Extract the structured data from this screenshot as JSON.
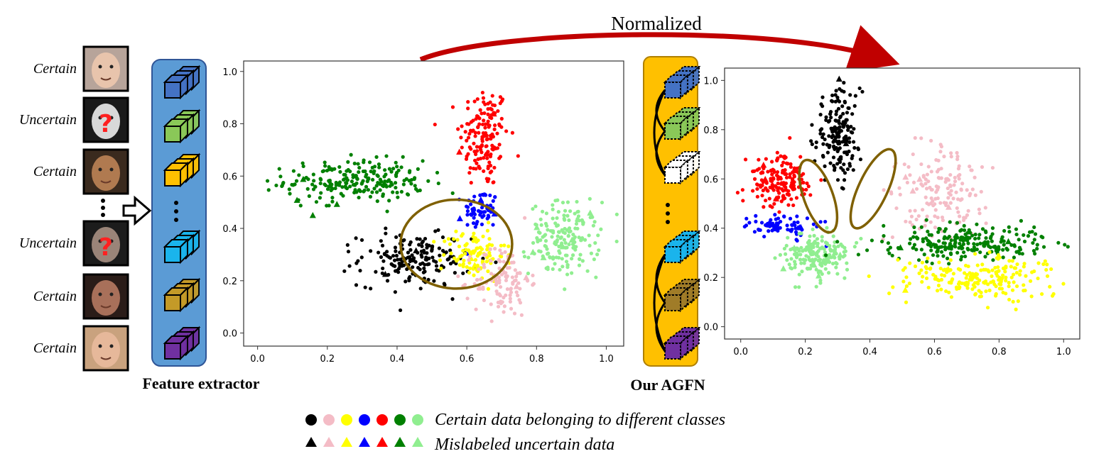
{
  "title": "Normalized",
  "inputs": {
    "faces": [
      {
        "label": "Certain",
        "skin": "#e8c4ac",
        "bg": "#b7a49a",
        "uncertain": false
      },
      {
        "label": "Uncertain",
        "skin": "#d8d8d8",
        "bg": "#1a1a1a",
        "uncertain": true
      },
      {
        "label": "Certain",
        "skin": "#b07a50",
        "bg": "#3a2a1e",
        "uncertain": false
      },
      {
        "label": "Uncertain",
        "skin": "#9a8478",
        "bg": "#1c1c1c",
        "uncertain": true
      },
      {
        "label": "Certain",
        "skin": "#a8705a",
        "bg": "#2a1c18",
        "uncertain": false
      },
      {
        "label": "Certain",
        "skin": "#e6b89a",
        "bg": "#c9a27e",
        "uncertain": false
      }
    ]
  },
  "feature_extractor": {
    "label": "Feature extractor",
    "block_colors": [
      "#4472c4",
      "#8ac858",
      "#ffc000",
      "#1ab4ec",
      "#c49a28",
      "#7030a0"
    ],
    "panel_color": "#5b9bd5"
  },
  "agfn": {
    "label": "Our AGFN",
    "block_colors": [
      "#4472c4",
      "#8ac858",
      "#ffffff",
      "#1ab4ec",
      "#a07c28",
      "#7030a0"
    ],
    "panel_color": "#ffc000"
  },
  "legend": {
    "certain_text": "Certain data belonging to different classes",
    "uncertain_text": "Mislabeled uncertain data",
    "colors": [
      "#000000",
      "#f4bcc6",
      "#ffff00",
      "#0000ff",
      "#ff0000",
      "#008000",
      "#90ee90"
    ]
  },
  "chart_data": [
    {
      "type": "scatter",
      "name": "before-normalization",
      "title": "",
      "xlabel": "",
      "ylabel": "",
      "xlim": [
        -0.04,
        1.05
      ],
      "ylim": [
        -0.05,
        1.04
      ],
      "xticks": [
        0.0,
        0.2,
        0.4,
        0.6,
        0.8,
        1.0
      ],
      "yticks": [
        0.0,
        0.2,
        0.4,
        0.6,
        0.8,
        1.0
      ],
      "clusters": [
        {
          "class": "red",
          "color": "#ff0000",
          "cx": 0.65,
          "cy": 0.75,
          "sx": 0.035,
          "sy": 0.1,
          "n": 150,
          "triangles": 2
        },
        {
          "class": "blue",
          "color": "#0000ff",
          "cx": 0.64,
          "cy": 0.47,
          "sx": 0.025,
          "sy": 0.04,
          "n": 60,
          "triangles": 3
        },
        {
          "class": "green",
          "color": "#008000",
          "cx": 0.28,
          "cy": 0.58,
          "sx": 0.1,
          "sy": 0.04,
          "n": 220,
          "triangles": 4
        },
        {
          "class": "lightgreen",
          "color": "#90ee90",
          "cx": 0.88,
          "cy": 0.36,
          "sx": 0.05,
          "sy": 0.07,
          "n": 170,
          "triangles": 6
        },
        {
          "class": "black",
          "color": "#000000",
          "cx": 0.45,
          "cy": 0.28,
          "sx": 0.08,
          "sy": 0.05,
          "n": 170,
          "triangles": 2
        },
        {
          "class": "yellow",
          "color": "#ffff00",
          "cx": 0.62,
          "cy": 0.3,
          "sx": 0.045,
          "sy": 0.05,
          "n": 100,
          "triangles": 3
        },
        {
          "class": "pink",
          "color": "#f4bcc6",
          "cx": 0.7,
          "cy": 0.2,
          "sx": 0.04,
          "sy": 0.07,
          "n": 110,
          "triangles": 2
        }
      ],
      "annotation": {
        "shape": "ellipse",
        "cx": 0.57,
        "cy": 0.34,
        "rx": 0.16,
        "ry": 0.17,
        "color": "#7f6000"
      }
    },
    {
      "type": "scatter",
      "name": "after-normalization",
      "title": "",
      "xlabel": "",
      "ylabel": "",
      "xlim": [
        -0.05,
        1.05
      ],
      "ylim": [
        -0.05,
        1.05
      ],
      "xticks": [
        0.0,
        0.2,
        0.4,
        0.6,
        0.8,
        1.0
      ],
      "yticks": [
        0.0,
        0.2,
        0.4,
        0.6,
        0.8,
        1.0
      ],
      "clusters": [
        {
          "class": "black",
          "color": "#000000",
          "cx": 0.3,
          "cy": 0.78,
          "sx": 0.035,
          "sy": 0.09,
          "n": 170,
          "triangles": 2
        },
        {
          "class": "red",
          "color": "#ff0000",
          "cx": 0.12,
          "cy": 0.59,
          "sx": 0.05,
          "sy": 0.05,
          "n": 170,
          "triangles": 3
        },
        {
          "class": "blue",
          "color": "#0000ff",
          "cx": 0.13,
          "cy": 0.41,
          "sx": 0.05,
          "sy": 0.025,
          "n": 70,
          "triangles": 4
        },
        {
          "class": "lightgreen",
          "color": "#90ee90",
          "cx": 0.24,
          "cy": 0.29,
          "sx": 0.05,
          "sy": 0.045,
          "n": 180,
          "triangles": 5
        },
        {
          "class": "pink",
          "color": "#f4bcc6",
          "cx": 0.62,
          "cy": 0.55,
          "sx": 0.07,
          "sy": 0.09,
          "n": 150,
          "triangles": 4
        },
        {
          "class": "green",
          "color": "#008000",
          "cx": 0.7,
          "cy": 0.34,
          "sx": 0.13,
          "sy": 0.035,
          "n": 230,
          "triangles": 2
        },
        {
          "class": "yellow",
          "color": "#ffff00",
          "cx": 0.72,
          "cy": 0.2,
          "sx": 0.11,
          "sy": 0.04,
          "n": 200,
          "triangles": 2
        }
      ],
      "annotation_ellipses": [
        {
          "cx": 0.24,
          "cy": 0.53,
          "rx": 0.045,
          "ry": 0.155,
          "angle": -20,
          "color": "#7f6000"
        },
        {
          "cx": 0.41,
          "cy": 0.56,
          "rx": 0.045,
          "ry": 0.175,
          "angle": 25,
          "color": "#7f6000"
        }
      ]
    }
  ]
}
